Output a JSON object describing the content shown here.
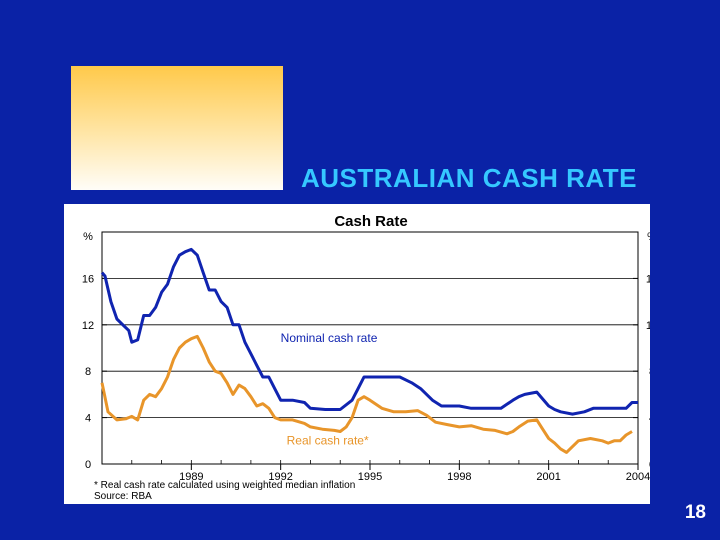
{
  "slide": {
    "title": "AUSTRALIAN CASH RATE",
    "page_number": "18"
  },
  "colors": {
    "background": "#0a22a6",
    "title": "#35c8ff",
    "nominal": "#1024b0",
    "real": "#e8952a"
  },
  "chart_data": {
    "type": "line",
    "title": "Cash Rate",
    "left_unit": "%",
    "right_unit": "%",
    "xlim": [
      1986.0,
      2004.0
    ],
    "ylim": [
      0,
      20
    ],
    "yticks": [
      0,
      4,
      8,
      12,
      16
    ],
    "xticks": [
      1989,
      1992,
      1995,
      1998,
      2001,
      2004
    ],
    "grid": true,
    "series": [
      {
        "name": "Nominal cash rate",
        "color": "#1024b0",
        "points": [
          [
            1986.0,
            16.5
          ],
          [
            1986.1,
            16.2
          ],
          [
            1986.3,
            14.0
          ],
          [
            1986.5,
            12.5
          ],
          [
            1986.7,
            12.0
          ],
          [
            1986.9,
            11.5
          ],
          [
            1987.0,
            10.5
          ],
          [
            1987.2,
            10.7
          ],
          [
            1987.4,
            12.8
          ],
          [
            1987.6,
            12.8
          ],
          [
            1987.8,
            13.5
          ],
          [
            1988.0,
            14.8
          ],
          [
            1988.2,
            15.5
          ],
          [
            1988.4,
            17.0
          ],
          [
            1988.6,
            18.0
          ],
          [
            1988.8,
            18.3
          ],
          [
            1989.0,
            18.5
          ],
          [
            1989.2,
            18.0
          ],
          [
            1989.4,
            16.5
          ],
          [
            1989.6,
            15.0
          ],
          [
            1989.8,
            15.0
          ],
          [
            1990.0,
            14.0
          ],
          [
            1990.2,
            13.5
          ],
          [
            1990.4,
            12.0
          ],
          [
            1990.6,
            12.0
          ],
          [
            1990.8,
            10.5
          ],
          [
            1991.0,
            9.5
          ],
          [
            1991.2,
            8.5
          ],
          [
            1991.4,
            7.5
          ],
          [
            1991.6,
            7.5
          ],
          [
            1991.8,
            6.5
          ],
          [
            1992.0,
            5.5
          ],
          [
            1992.4,
            5.5
          ],
          [
            1992.8,
            5.3
          ],
          [
            1993.0,
            4.8
          ],
          [
            1993.5,
            4.7
          ],
          [
            1994.0,
            4.7
          ],
          [
            1994.4,
            5.5
          ],
          [
            1994.6,
            6.5
          ],
          [
            1994.8,
            7.5
          ],
          [
            1995.5,
            7.5
          ],
          [
            1996.0,
            7.5
          ],
          [
            1996.4,
            7.0
          ],
          [
            1996.7,
            6.5
          ],
          [
            1996.9,
            6.0
          ],
          [
            1997.1,
            5.5
          ],
          [
            1997.4,
            5.0
          ],
          [
            1998.0,
            5.0
          ],
          [
            1998.4,
            4.8
          ],
          [
            1999.0,
            4.8
          ],
          [
            1999.4,
            4.8
          ],
          [
            1999.8,
            5.5
          ],
          [
            2000.0,
            5.8
          ],
          [
            2000.2,
            6.0
          ],
          [
            2000.6,
            6.2
          ],
          [
            2000.9,
            5.3
          ],
          [
            2001.0,
            5.0
          ],
          [
            2001.2,
            4.7
          ],
          [
            2001.4,
            4.5
          ],
          [
            2001.8,
            4.3
          ],
          [
            2002.2,
            4.5
          ],
          [
            2002.5,
            4.8
          ],
          [
            2003.0,
            4.8
          ],
          [
            2003.6,
            4.8
          ],
          [
            2003.8,
            5.3
          ],
          [
            2004.0,
            5.3
          ]
        ]
      },
      {
        "name": "Real cash rate*",
        "color": "#e8952a",
        "points": [
          [
            1986.0,
            7.0
          ],
          [
            1986.2,
            4.5
          ],
          [
            1986.5,
            3.8
          ],
          [
            1986.8,
            3.9
          ],
          [
            1987.0,
            4.1
          ],
          [
            1987.2,
            3.8
          ],
          [
            1987.4,
            5.5
          ],
          [
            1987.6,
            6.0
          ],
          [
            1987.8,
            5.8
          ],
          [
            1988.0,
            6.5
          ],
          [
            1988.2,
            7.5
          ],
          [
            1988.4,
            9.0
          ],
          [
            1988.6,
            10.0
          ],
          [
            1988.8,
            10.5
          ],
          [
            1989.0,
            10.8
          ],
          [
            1989.2,
            11.0
          ],
          [
            1989.4,
            10.0
          ],
          [
            1989.6,
            8.8
          ],
          [
            1989.8,
            8.0
          ],
          [
            1990.0,
            7.8
          ],
          [
            1990.2,
            7.0
          ],
          [
            1990.4,
            6.0
          ],
          [
            1990.6,
            6.8
          ],
          [
            1990.8,
            6.5
          ],
          [
            1991.0,
            5.8
          ],
          [
            1991.2,
            5.0
          ],
          [
            1991.4,
            5.2
          ],
          [
            1991.6,
            4.8
          ],
          [
            1991.8,
            4.0
          ],
          [
            1992.0,
            3.8
          ],
          [
            1992.4,
            3.8
          ],
          [
            1992.8,
            3.5
          ],
          [
            1993.0,
            3.2
          ],
          [
            1993.4,
            3.0
          ],
          [
            1993.8,
            2.9
          ],
          [
            1994.0,
            2.8
          ],
          [
            1994.2,
            3.2
          ],
          [
            1994.4,
            4.0
          ],
          [
            1994.6,
            5.5
          ],
          [
            1994.8,
            5.8
          ],
          [
            1995.0,
            5.5
          ],
          [
            1995.4,
            4.8
          ],
          [
            1995.8,
            4.5
          ],
          [
            1996.2,
            4.5
          ],
          [
            1996.6,
            4.6
          ],
          [
            1996.9,
            4.2
          ],
          [
            1997.2,
            3.6
          ],
          [
            1997.6,
            3.4
          ],
          [
            1998.0,
            3.2
          ],
          [
            1998.4,
            3.3
          ],
          [
            1998.8,
            3.0
          ],
          [
            1999.2,
            2.9
          ],
          [
            1999.6,
            2.6
          ],
          [
            1999.8,
            2.8
          ],
          [
            2000.0,
            3.2
          ],
          [
            2000.3,
            3.7
          ],
          [
            2000.6,
            3.8
          ],
          [
            2000.8,
            3.0
          ],
          [
            2001.0,
            2.2
          ],
          [
            2001.2,
            1.8
          ],
          [
            2001.4,
            1.3
          ],
          [
            2001.6,
            1.0
          ],
          [
            2001.8,
            1.5
          ],
          [
            2002.0,
            2.0
          ],
          [
            2002.4,
            2.2
          ],
          [
            2002.8,
            2.0
          ],
          [
            2003.0,
            1.8
          ],
          [
            2003.2,
            2.0
          ],
          [
            2003.4,
            2.0
          ],
          [
            2003.6,
            2.5
          ],
          [
            2003.8,
            2.8
          ]
        ]
      }
    ],
    "annotations": [
      {
        "text": "Nominal cash rate",
        "x": 1992.0,
        "y": 10.5,
        "color": "#1024b0"
      },
      {
        "text": "Real cash rate*",
        "x": 1992.2,
        "y": 1.7,
        "color": "#e8952a"
      }
    ],
    "footnote": "* Real cash rate calculated using weighted median inflation",
    "source": "Source: RBA"
  }
}
